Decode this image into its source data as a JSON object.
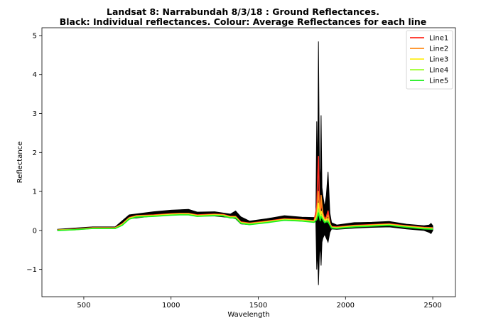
{
  "chart_data": {
    "type": "line",
    "title": [
      "Landsat 8: Narrabundah 8/3/18 : Ground Reflectances.",
      "Black: Individual reflectances. Colour: Average Reflectances for each line"
    ],
    "xlabel": "Wavelength",
    "ylabel": "Reflectance",
    "xlim": [
      260,
      2630
    ],
    "ylim": [
      -1.7,
      5.2
    ],
    "xticks": [
      500,
      1000,
      1500,
      2000,
      2500
    ],
    "yticks": [
      -1,
      0,
      1,
      2,
      3,
      4,
      5
    ],
    "grid": false,
    "legend_position": "top-right",
    "envelope": {
      "description_color": "#000000",
      "x": [
        350,
        550,
        680,
        760,
        900,
        1000,
        1100,
        1150,
        1250,
        1340,
        1370,
        1400,
        1450,
        1550,
        1650,
        1750,
        1830,
        1835,
        1840,
        1845,
        1850,
        1855,
        1860,
        1865,
        1870,
        1880,
        1890,
        1900,
        1910,
        1920,
        1950,
        2050,
        2150,
        2250,
        2350,
        2450,
        2480,
        2490,
        2500
      ],
      "upper": [
        0.03,
        0.09,
        0.09,
        0.4,
        0.48,
        0.52,
        0.54,
        0.47,
        0.48,
        0.42,
        0.5,
        0.35,
        0.24,
        0.3,
        0.38,
        0.34,
        0.33,
        2.8,
        1.2,
        4.85,
        1.6,
        1.2,
        2.95,
        1.1,
        0.9,
        0.6,
        0.9,
        1.5,
        0.45,
        0.2,
        0.14,
        0.2,
        0.21,
        0.23,
        0.16,
        0.12,
        0.14,
        0.18,
        0.12
      ],
      "lower": [
        0.0,
        0.06,
        0.06,
        0.3,
        0.37,
        0.4,
        0.42,
        0.37,
        0.37,
        0.33,
        0.3,
        0.17,
        0.15,
        0.21,
        0.26,
        0.24,
        0.22,
        -1.0,
        -0.5,
        -1.4,
        -0.6,
        -0.4,
        -0.9,
        -0.3,
        -0.2,
        -0.1,
        -0.2,
        -0.3,
        -0.05,
        0.04,
        0.03,
        0.06,
        0.08,
        0.09,
        0.04,
        0.0,
        -0.05,
        -0.08,
        0.0
      ]
    },
    "x": [
      350,
      450,
      550,
      680,
      720,
      760,
      800,
      900,
      1000,
      1050,
      1100,
      1150,
      1200,
      1250,
      1300,
      1340,
      1370,
      1400,
      1450,
      1550,
      1650,
      1750,
      1820,
      1835,
      1845,
      1850,
      1855,
      1860,
      1870,
      1880,
      1890,
      1900,
      1910,
      1920,
      1950,
      2050,
      2150,
      2250,
      2350,
      2450,
      2500
    ],
    "series": [
      {
        "name": "Line1",
        "color": "#ff2a1f",
        "values": [
          0.01,
          0.03,
          0.07,
          0.07,
          0.17,
          0.33,
          0.38,
          0.4,
          0.43,
          0.44,
          0.44,
          0.4,
          0.41,
          0.42,
          0.41,
          0.36,
          0.36,
          0.22,
          0.19,
          0.24,
          0.3,
          0.28,
          0.25,
          0.6,
          1.9,
          0.8,
          0.4,
          0.7,
          0.45,
          0.3,
          0.35,
          0.5,
          0.2,
          0.1,
          0.09,
          0.13,
          0.15,
          0.17,
          0.12,
          0.08,
          0.07
        ]
      },
      {
        "name": "Line2",
        "color": "#ff8c1a",
        "values": [
          0.01,
          0.03,
          0.06,
          0.06,
          0.16,
          0.32,
          0.37,
          0.39,
          0.42,
          0.43,
          0.43,
          0.39,
          0.4,
          0.41,
          0.4,
          0.35,
          0.35,
          0.21,
          0.18,
          0.23,
          0.29,
          0.27,
          0.24,
          0.45,
          1.0,
          0.6,
          0.35,
          0.9,
          0.4,
          0.28,
          0.3,
          0.4,
          0.18,
          0.09,
          0.08,
          0.12,
          0.14,
          0.16,
          0.11,
          0.07,
          0.06
        ]
      },
      {
        "name": "Line3",
        "color": "#ffee1a",
        "values": [
          0.01,
          0.02,
          0.06,
          0.06,
          0.15,
          0.31,
          0.36,
          0.38,
          0.41,
          0.42,
          0.42,
          0.38,
          0.39,
          0.4,
          0.39,
          0.34,
          0.34,
          0.2,
          0.17,
          0.22,
          0.28,
          0.26,
          0.23,
          0.35,
          0.7,
          0.45,
          0.3,
          0.5,
          0.35,
          0.25,
          0.28,
          0.3,
          0.16,
          0.08,
          0.07,
          0.11,
          0.13,
          0.15,
          0.1,
          0.06,
          0.05
        ]
      },
      {
        "name": "Line4",
        "color": "#9cff2e",
        "values": [
          0.0,
          0.02,
          0.05,
          0.05,
          0.14,
          0.3,
          0.35,
          0.37,
          0.4,
          0.41,
          0.41,
          0.37,
          0.38,
          0.39,
          0.38,
          0.33,
          0.33,
          0.19,
          0.16,
          0.21,
          0.27,
          0.25,
          0.22,
          0.3,
          0.55,
          0.4,
          0.28,
          0.4,
          0.3,
          0.22,
          0.25,
          0.25,
          0.15,
          0.07,
          0.06,
          0.1,
          0.12,
          0.14,
          0.09,
          0.05,
          0.04
        ]
      },
      {
        "name": "Line5",
        "color": "#1aee1a",
        "values": [
          0.0,
          0.02,
          0.05,
          0.05,
          0.13,
          0.29,
          0.34,
          0.36,
          0.39,
          0.4,
          0.4,
          0.36,
          0.37,
          0.38,
          0.37,
          0.32,
          0.32,
          0.18,
          0.15,
          0.2,
          0.26,
          0.24,
          0.21,
          0.28,
          0.45,
          0.35,
          0.25,
          0.35,
          0.28,
          0.2,
          0.22,
          0.22,
          0.14,
          0.06,
          0.05,
          0.09,
          0.11,
          0.13,
          0.08,
          0.04,
          0.03
        ]
      }
    ]
  }
}
